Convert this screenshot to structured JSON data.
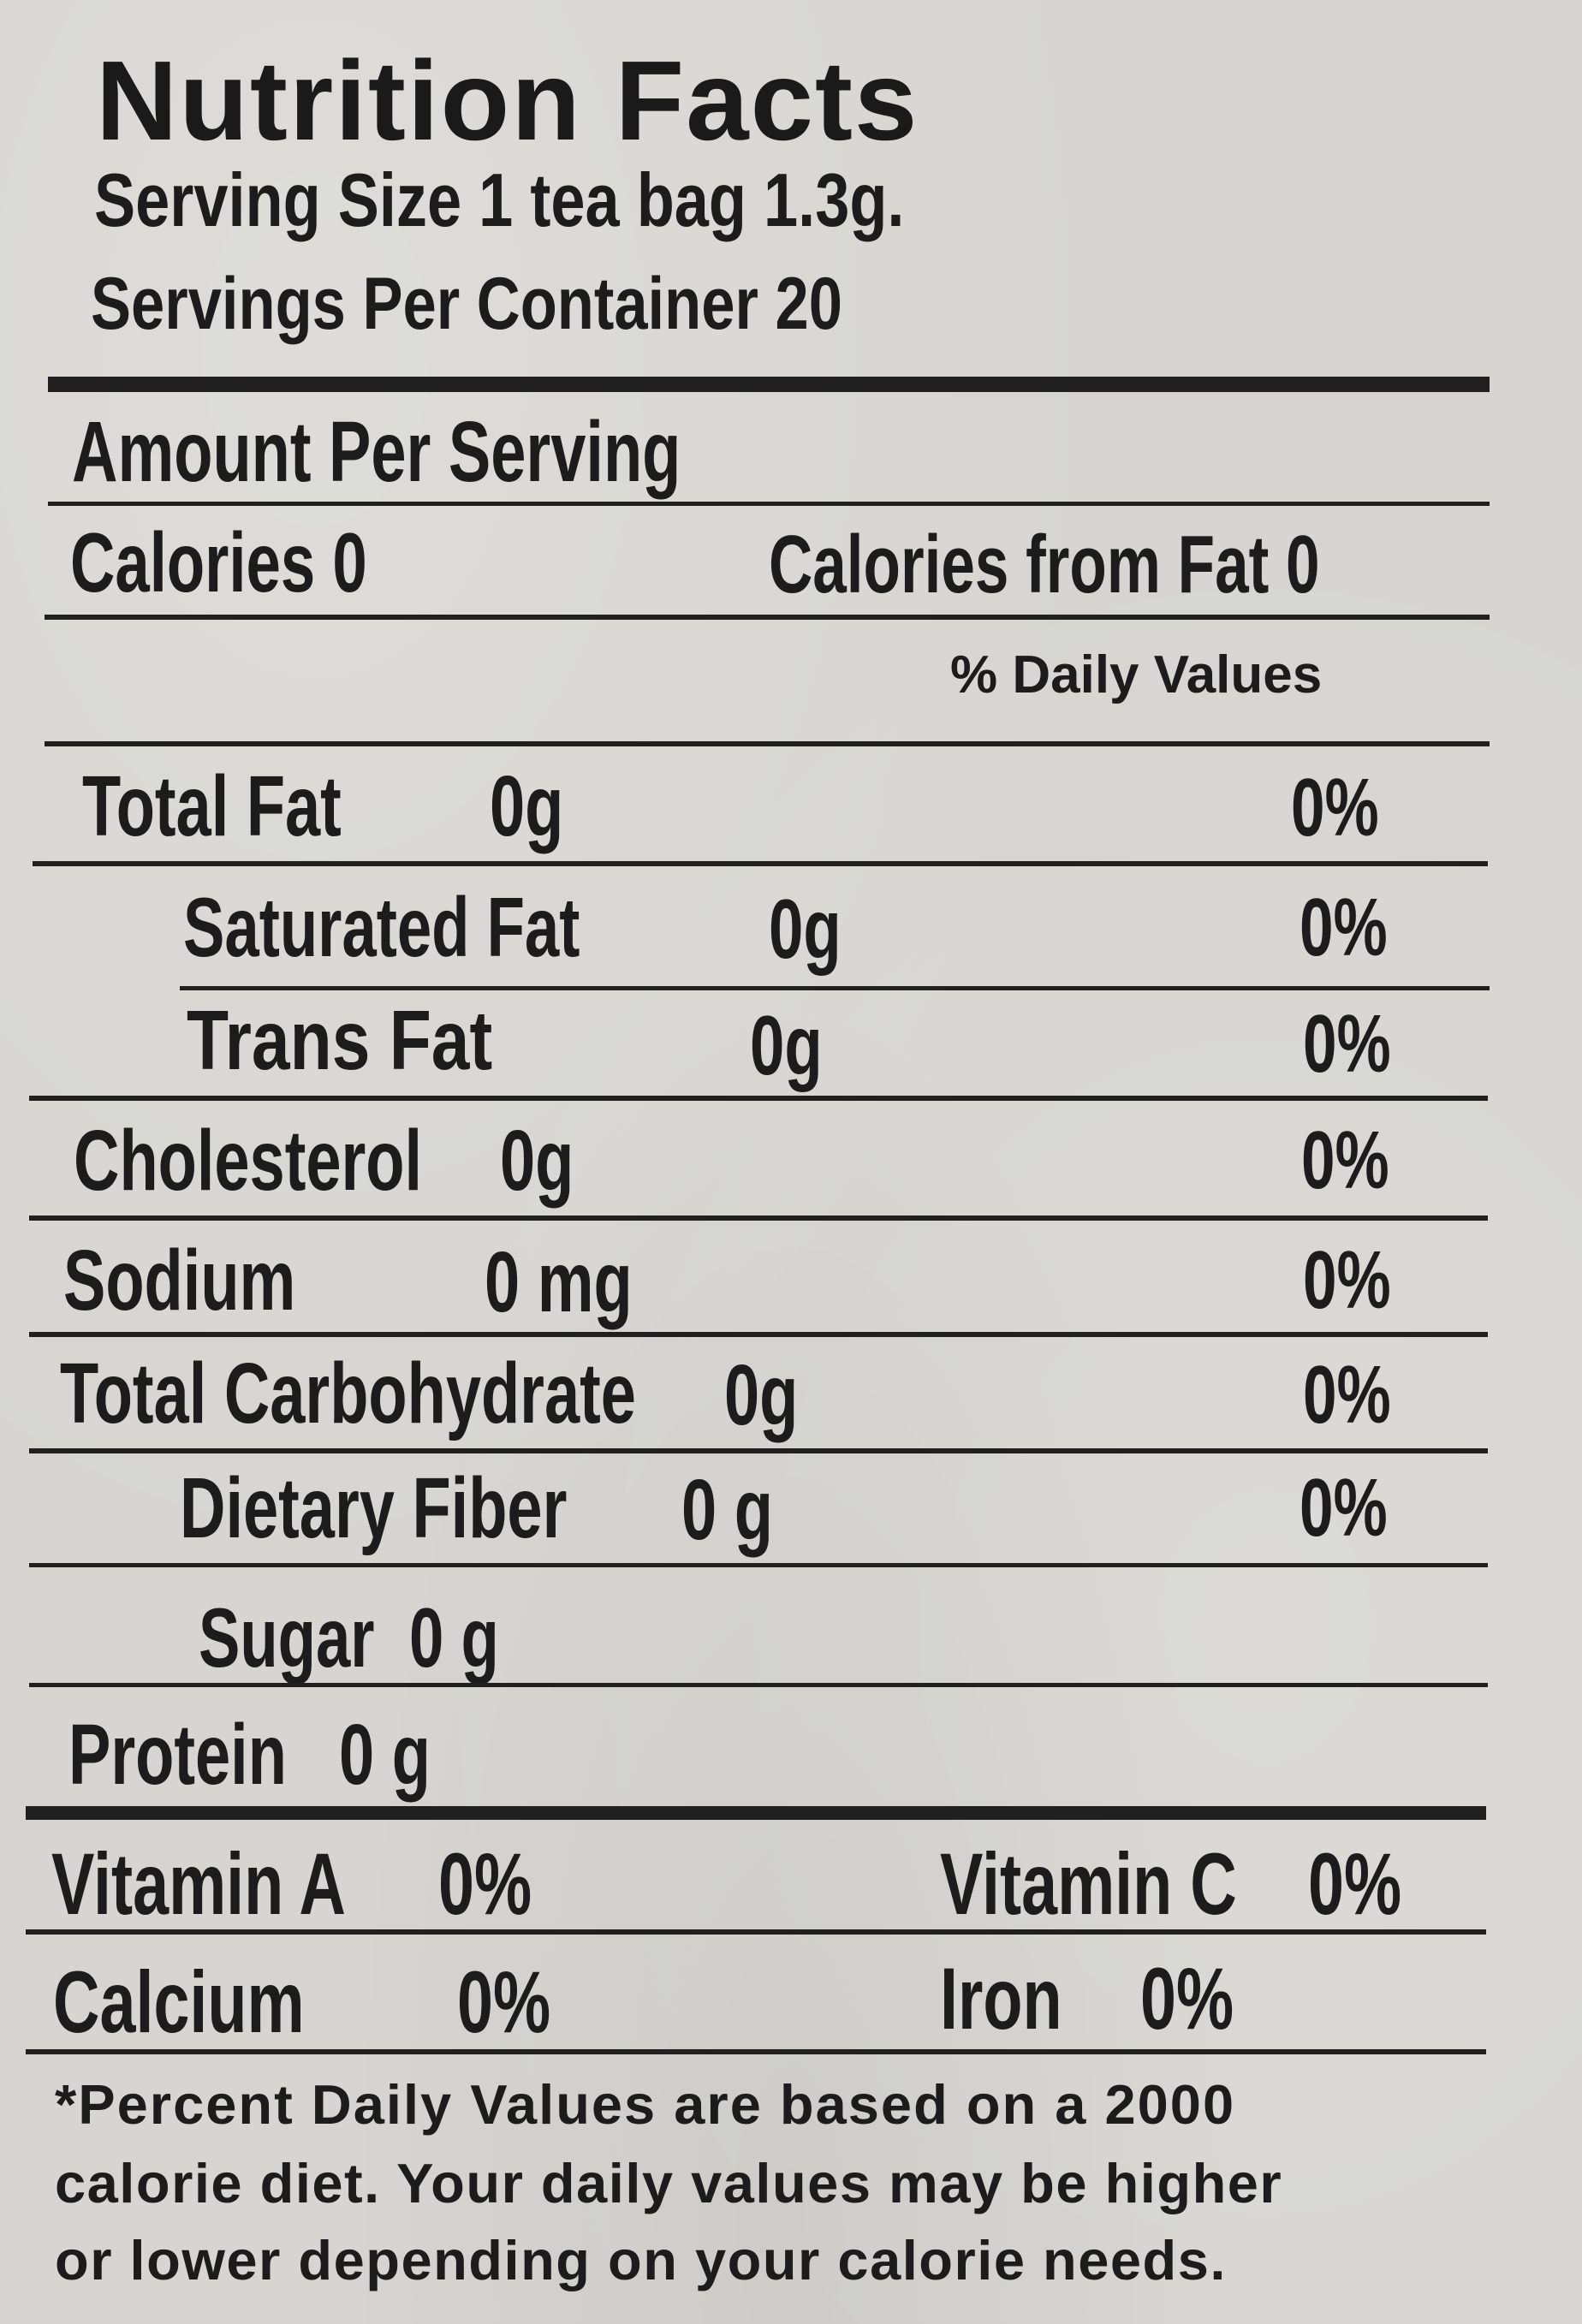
{
  "title": "Nutrition Facts",
  "serving_size": "Serving Size 1 tea bag 1.3g.",
  "servings_per_container": "Servings Per  Container 20",
  "amount_per_serving": "Amount Per Serving",
  "calories": "Calories 0",
  "calories_from_fat": "Calories from Fat 0",
  "daily_values_header": "% Daily Values",
  "nutrients": [
    {
      "name": "Total Fat",
      "amount": "0g",
      "dv": "0%"
    },
    {
      "name": "Saturated Fat",
      "amount": "0g",
      "dv": "0%"
    },
    {
      "name": "Trans Fat",
      "amount": "0g",
      "dv": "0%"
    },
    {
      "name": "Cholesterol",
      "amount": "0g",
      "dv": "0%"
    },
    {
      "name": "Sodium",
      "amount": "0 mg",
      "dv": "0%"
    },
    {
      "name": "Total Carbohydrate",
      "amount": "0g",
      "dv": "0%"
    },
    {
      "name": "Dietary Fiber",
      "amount": "0 g",
      "dv": "0%"
    },
    {
      "name": "Sugar",
      "amount": "0 g"
    },
    {
      "name": "Protein",
      "amount": "0  g"
    }
  ],
  "vitamins": [
    {
      "name": "Vitamin A",
      "dv": "0%"
    },
    {
      "name": "Vitamin C",
      "dv": "0%"
    },
    {
      "name": "Calcium",
      "dv": "0%"
    },
    {
      "name": "Iron",
      "dv": "0%"
    }
  ],
  "footnote": [
    "*Percent Daily Values are based on a 2000",
    "calorie diet. Your daily values may be higher",
    "or lower depending on your calorie needs."
  ]
}
